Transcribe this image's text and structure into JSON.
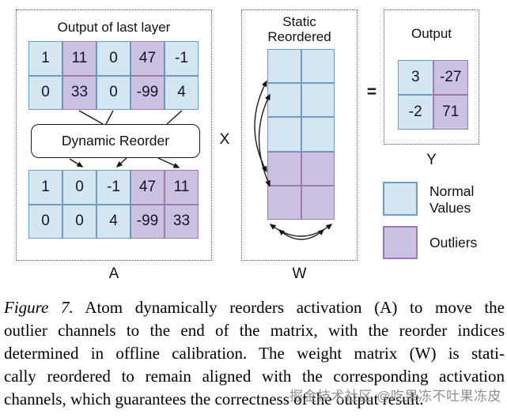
{
  "colors": {
    "normal_fill": "#d3e6f2",
    "normal_border": "#6f9cc4",
    "outlier_fill": "#cbc1e0",
    "outlier_border": "#9c79b3"
  },
  "figure": {
    "left_panel": {
      "title": "Output of last layer",
      "matrix_before": {
        "rows": [
          [
            "1",
            "11",
            "0",
            "47",
            "-1"
          ],
          [
            "0",
            "33",
            "0",
            "-99",
            "4"
          ]
        ],
        "outlier_cols": [
          1,
          3
        ]
      },
      "reorder_box_label": "Dynamic Reorder",
      "matrix_after": {
        "rows": [
          [
            "1",
            "0",
            "-1",
            "47",
            "11"
          ],
          [
            "0",
            "0",
            "4",
            "-99",
            "33"
          ]
        ],
        "outlier_cols": [
          3,
          4
        ]
      },
      "label": "A"
    },
    "multiply_symbol": "X",
    "middle_panel": {
      "title_line1": "Static",
      "title_line2": "Reordered",
      "weight_matrix": {
        "rows": [
          [
            "",
            ""
          ],
          [
            "",
            ""
          ],
          [
            "",
            ""
          ],
          [
            "",
            ""
          ],
          [
            "",
            ""
          ]
        ],
        "outlier_rows": [
          3,
          4
        ]
      },
      "label": "W"
    },
    "equals_symbol": "=",
    "right_panel": {
      "title": "Output",
      "output_matrix": {
        "rows": [
          [
            "3",
            "-27"
          ],
          [
            "-2",
            "71"
          ]
        ],
        "outlier_cols": [
          1
        ]
      },
      "label": "Y"
    },
    "legend": {
      "normal_label": "Normal Values",
      "outlier_label": "Outliers"
    }
  },
  "caption": {
    "figure_label": "Figure 7.",
    "line1_rest": " Atom dynamically reorders activation (A) to move the",
    "line2": "outlier channels to the end of the matrix, with the reorder indices",
    "line3": "determined in offline calibration. The weight matrix (W) is stati-",
    "line4": "cally reordered to remain aligned with the corresponding activation",
    "line5": "channels, which guarantees the correctness of the output result."
  },
  "watermark": "掘金技术社区 @吃果冻不吐果冻皮"
}
